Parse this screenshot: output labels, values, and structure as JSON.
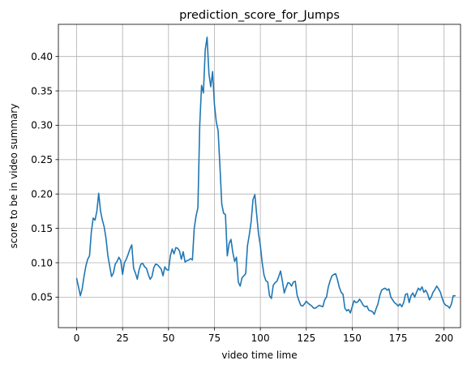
{
  "chart_data": {
    "type": "line",
    "title": "prediction_score_for_Jumps",
    "xlabel": "video time lime",
    "ylabel": "score to be in video summary",
    "xlim": [
      -9.95,
      208.95
    ],
    "ylim": [
      0.0056,
      0.4468
    ],
    "grid": true,
    "line_color": "#1f77b4",
    "xticks": [
      0,
      25,
      50,
      75,
      100,
      125,
      150,
      175,
      200
    ],
    "xtick_labels": [
      "0",
      "25",
      "50",
      "75",
      "100",
      "125",
      "150",
      "175",
      "200"
    ],
    "yticks": [
      0.05,
      0.1,
      0.15,
      0.2,
      0.25,
      0.3,
      0.35,
      0.4
    ],
    "ytick_labels": [
      "0.05",
      "0.10",
      "0.15",
      "0.20",
      "0.25",
      "0.30",
      "0.35",
      "0.40"
    ],
    "series": [
      {
        "values": [
          0.077,
          0.065,
          0.052,
          0.062,
          0.08,
          0.095,
          0.105,
          0.11,
          0.145,
          0.165,
          0.162,
          0.175,
          0.201,
          0.175,
          0.162,
          0.152,
          0.135,
          0.11,
          0.095,
          0.08,
          0.085,
          0.098,
          0.102,
          0.108,
          0.103,
          0.083,
          0.1,
          0.105,
          0.112,
          0.12,
          0.126,
          0.092,
          0.085,
          0.076,
          0.09,
          0.098,
          0.099,
          0.094,
          0.092,
          0.083,
          0.076,
          0.08,
          0.093,
          0.098,
          0.097,
          0.094,
          0.091,
          0.081,
          0.094,
          0.09,
          0.089,
          0.11,
          0.12,
          0.113,
          0.122,
          0.121,
          0.117,
          0.105,
          0.116,
          0.101,
          0.103,
          0.104,
          0.106,
          0.104,
          0.15,
          0.168,
          0.18,
          0.3,
          0.358,
          0.347,
          0.41,
          0.428,
          0.375,
          0.356,
          0.378,
          0.33,
          0.305,
          0.292,
          0.24,
          0.185,
          0.172,
          0.17,
          0.11,
          0.128,
          0.134,
          0.115,
          0.102,
          0.108,
          0.072,
          0.066,
          0.078,
          0.081,
          0.084,
          0.125,
          0.141,
          0.16,
          0.192,
          0.199,
          0.17,
          0.142,
          0.125,
          0.1,
          0.082,
          0.074,
          0.072,
          0.052,
          0.048,
          0.067,
          0.071,
          0.073,
          0.08,
          0.088,
          0.073,
          0.056,
          0.064,
          0.071,
          0.07,
          0.066,
          0.072,
          0.073,
          0.053,
          0.045,
          0.038,
          0.037,
          0.04,
          0.044,
          0.041,
          0.039,
          0.037,
          0.034,
          0.034,
          0.036,
          0.038,
          0.037,
          0.036,
          0.046,
          0.05,
          0.065,
          0.074,
          0.081,
          0.083,
          0.084,
          0.075,
          0.064,
          0.057,
          0.054,
          0.034,
          0.03,
          0.032,
          0.027,
          0.036,
          0.045,
          0.042,
          0.043,
          0.047,
          0.043,
          0.038,
          0.036,
          0.037,
          0.031,
          0.03,
          0.029,
          0.025,
          0.033,
          0.04,
          0.052,
          0.06,
          0.062,
          0.063,
          0.06,
          0.062,
          0.05,
          0.046,
          0.042,
          0.04,
          0.037,
          0.04,
          0.036,
          0.042,
          0.054,
          0.055,
          0.042,
          0.052,
          0.056,
          0.05,
          0.057,
          0.063,
          0.06,
          0.065,
          0.057,
          0.06,
          0.055,
          0.046,
          0.05,
          0.057,
          0.061,
          0.066,
          0.062,
          0.057,
          0.048,
          0.041,
          0.038,
          0.037,
          0.034,
          0.04,
          0.052,
          0.052
        ]
      }
    ]
  }
}
